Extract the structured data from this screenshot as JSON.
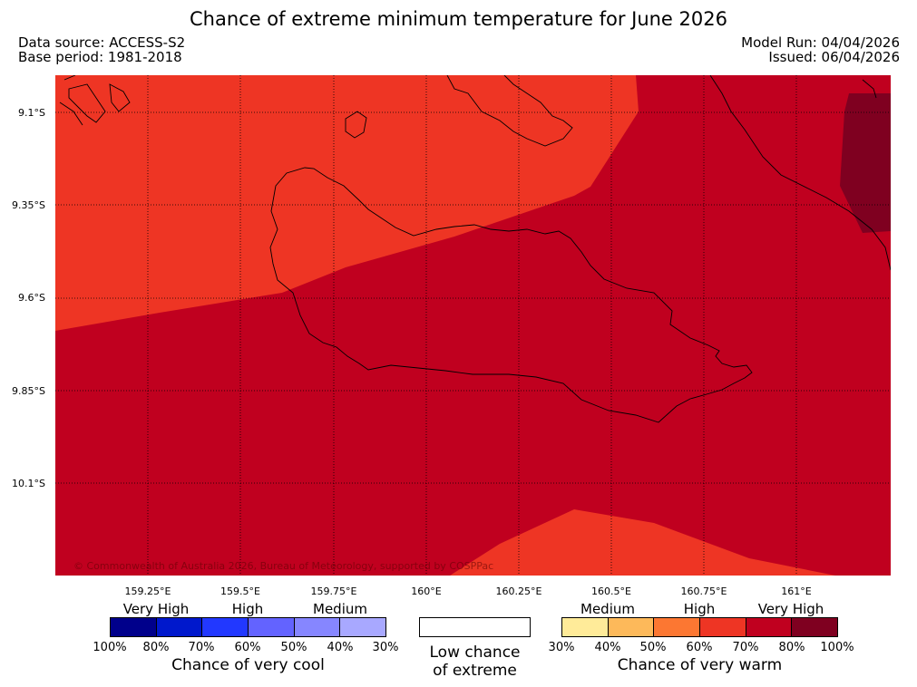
{
  "header": {
    "title": "Chance of extreme minimum temperature for June 2026",
    "data_source": "Data source: ACCESS-S2",
    "base_period": "Base period: 1981-2018",
    "model_run": "Model Run: 04/04/2026",
    "issued": "Issued: 06/04/2026"
  },
  "map": {
    "latitude_labels": [
      "9.1°S",
      "9.35°S",
      "9.6°S",
      "9.85°S",
      "10.1°S"
    ],
    "longitude_labels": [
      "159.25°E",
      "159.5°E",
      "159.75°E",
      "160°E",
      "160.25°E",
      "160.5°E",
      "160.75°E",
      "161°E"
    ],
    "copyright": "© Commonwealth of Australia 2026, Bureau of Meteorology, supported by COSPPac",
    "region_colors": {
      "very_warm_70_80": "#c0001f",
      "very_warm_60_70": "#ee3524",
      "very_warm_80_100": "#7f0020"
    }
  },
  "legend": {
    "cool": {
      "categories": [
        "Very High",
        "High",
        "Medium"
      ],
      "percentages": [
        "100%",
        "80%",
        "70%",
        "60%",
        "50%",
        "40%",
        "30%"
      ],
      "colors": [
        "#00008b",
        "#0018cc",
        "#2238ff",
        "#6363ff",
        "#8686ff",
        "#a8a8ff"
      ],
      "title": "Chance of very cool"
    },
    "neutral": {
      "line1": "Low chance",
      "line2": "of extreme",
      "color": "#ffffff"
    },
    "warm": {
      "categories": [
        "Medium",
        "High",
        "Very High"
      ],
      "percentages": [
        "30%",
        "40%",
        "50%",
        "60%",
        "70%",
        "80%",
        "100%"
      ],
      "colors": [
        "#ffeb99",
        "#fdb95a",
        "#fc7732",
        "#ee3524",
        "#c0001f",
        "#7f0020"
      ],
      "title": "Chance of very warm"
    }
  }
}
